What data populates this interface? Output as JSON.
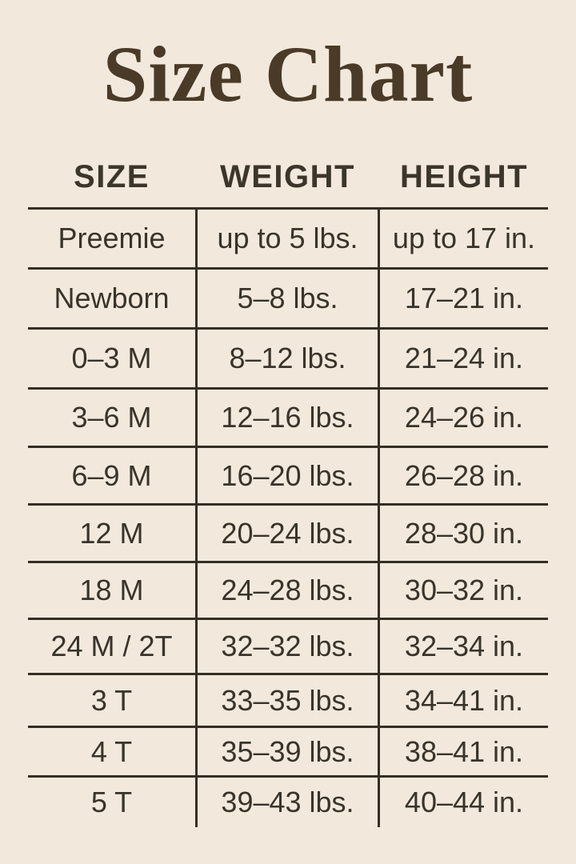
{
  "title": "Size Chart",
  "colors": {
    "background": "#f2e9dc",
    "title": "#4a3a28",
    "header": "#3c352a",
    "text": "#39332a",
    "line": "#362e24"
  },
  "chart_data": {
    "type": "table",
    "title": "Size Chart",
    "columns": [
      "SIZE",
      "WEIGHT",
      "HEIGHT"
    ],
    "rows": [
      {
        "size": "Preemie",
        "weight": "up to 5 lbs.",
        "height": "up to 17 in."
      },
      {
        "size": "Newborn",
        "weight": "5–8 lbs.",
        "height": "17–21 in."
      },
      {
        "size": "0–3 M",
        "weight": "8–12 lbs.",
        "height": "21–24 in."
      },
      {
        "size": "3–6 M",
        "weight": "12–16 lbs.",
        "height": "24–26 in."
      },
      {
        "size": "6–9 M",
        "weight": "16–20 lbs.",
        "height": "26–28 in."
      },
      {
        "size": "12 M",
        "weight": "20–24 lbs.",
        "height": "28–30 in."
      },
      {
        "size": "18 M",
        "weight": "24–28 lbs.",
        "height": "30–32 in."
      },
      {
        "size": "24 M / 2T",
        "weight": "32–32 lbs.",
        "height": "32–34 in."
      },
      {
        "size": "3 T",
        "weight": "33–35 lbs.",
        "height": "34–41 in."
      },
      {
        "size": "4 T",
        "weight": "35–39 lbs.",
        "height": "38–41 in."
      },
      {
        "size": "5 T",
        "weight": "39–43 lbs.",
        "height": "40–44 in."
      }
    ],
    "layout": {
      "grid": "horizontal rules between all rows, vertical rules around middle column in body only",
      "header_separators": "none above header, rule below header",
      "bottom_rule": "none under last row; vertical rules extend slightly below"
    }
  }
}
